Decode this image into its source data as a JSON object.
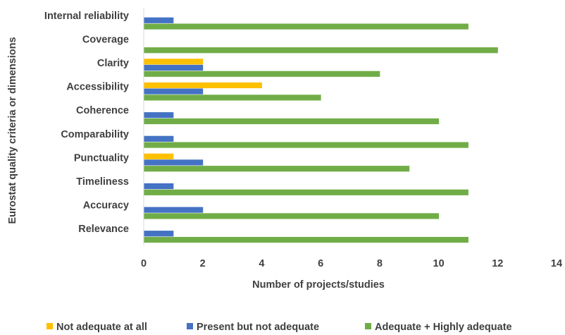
{
  "chart_data": {
    "type": "bar",
    "orientation": "horizontal",
    "categories": [
      "Internal reliability",
      "Coverage",
      "Clarity",
      "Accessibility",
      "Coherence",
      "Comparability",
      "Punctuality",
      "Timeliness",
      "Accuracy",
      "Relevance"
    ],
    "series": [
      {
        "name": "Not adequate at all",
        "color": "#FFC000",
        "values": [
          0,
          0,
          2,
          4,
          0,
          0,
          1,
          0,
          0,
          0
        ]
      },
      {
        "name": "Present but not adequate",
        "color": "#4472C4",
        "values": [
          1,
          0,
          2,
          2,
          1,
          1,
          2,
          1,
          2,
          1
        ]
      },
      {
        "name": "Adequate + Highly adequate",
        "color": "#70AD47",
        "values": [
          11,
          12,
          8,
          6,
          10,
          11,
          9,
          11,
          10,
          11
        ]
      }
    ],
    "xlabel": "Number of projects/studies",
    "ylabel": "Eurostat quality criteria or dimensions",
    "xlim": [
      0,
      14
    ],
    "xticks": [
      0,
      2,
      4,
      6,
      8,
      10,
      12,
      14
    ],
    "grid": false,
    "legend_position": "bottom"
  }
}
